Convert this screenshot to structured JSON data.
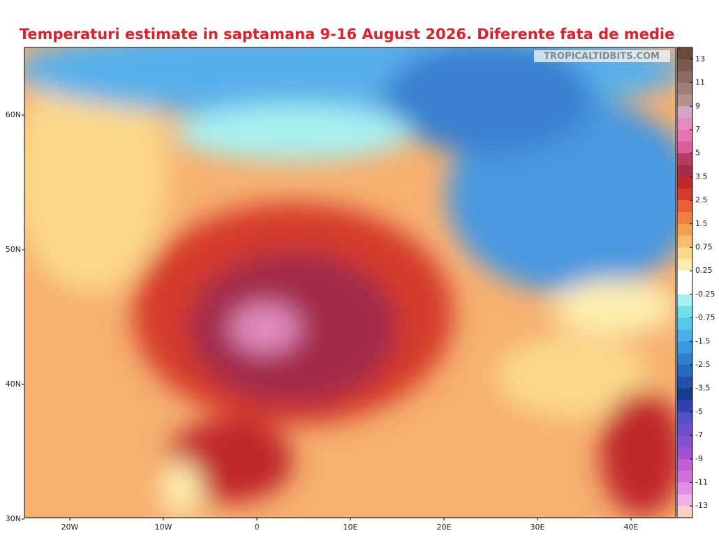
{
  "title": "Temperaturi estimate in saptamana 9-16 August 2026. Diferente fata de medie",
  "watermark": "TROPICALTIDBITS.COM",
  "axes": {
    "lat_labels": [
      "60N",
      "50N",
      "40N",
      "30N"
    ],
    "lon_labels": [
      "20W",
      "10W",
      "0",
      "10E",
      "20E",
      "30E",
      "40E"
    ]
  },
  "colorbar": {
    "labels": [
      "13",
      "11",
      "9",
      "7",
      "5",
      "3.5",
      "2.5",
      "1.5",
      "0.75",
      "0.25",
      "-0.25",
      "-0.75",
      "-1.5",
      "-2.5",
      "-3.5",
      "-5",
      "-7",
      "-9",
      "-11",
      "-13"
    ],
    "colors": [
      "#6b4a3a",
      "#7d5a4e",
      "#8e6b62",
      "#a07e77",
      "#b3928c",
      "#d8a4c4",
      "#e48cc0",
      "#e874b0",
      "#e05c98",
      "#b83c62",
      "#a22c4a",
      "#c0282a",
      "#d53a2a",
      "#e8603a",
      "#f0803f",
      "#f4a050",
      "#f8bd6a",
      "#fbd88a",
      "#fdeeb0",
      "#ffffff",
      "#ffffff",
      "#a8f0f0",
      "#70e0e8",
      "#58c8ec",
      "#48b0e8",
      "#3c98e0",
      "#3080d0",
      "#2868c0",
      "#2050a8",
      "#1a3a90",
      "#3040b0",
      "#5050c8",
      "#6a50d0",
      "#8850d0",
      "#a050d0",
      "#c060d0",
      "#d070d8",
      "#e090e0",
      "#f0b0e8",
      "#f8d0c8"
    ]
  }
}
